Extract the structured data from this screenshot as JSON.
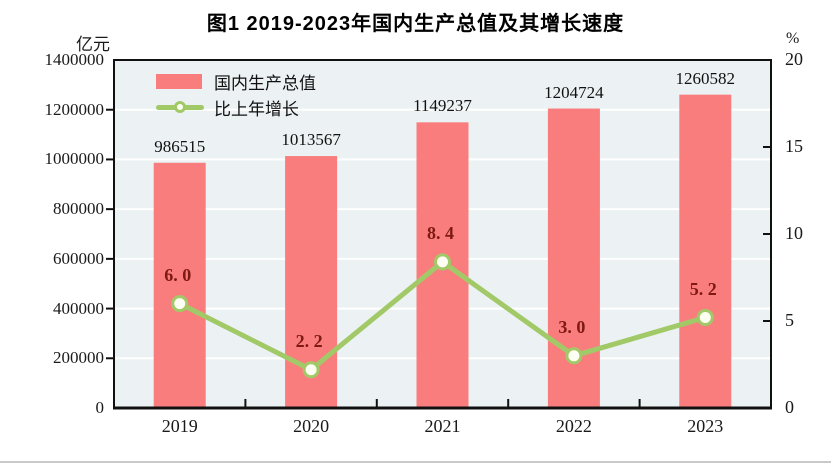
{
  "title": "图1  2019-2023年国内生产总值及其增长速度",
  "colors": {
    "bar": "#F97D7D",
    "line": "#A2C968",
    "marker_fill": "#FDFFF2",
    "plot_bg": "#ECF2F4",
    "gridline": "#FFFFFF",
    "axis": "#111111",
    "bar_label": "#111111",
    "growth_label": "#7E1A0F",
    "tick_label": "#1A1A1A"
  },
  "chart_data": {
    "type": "bar+line",
    "title": "图1  2019-2023年国内生产总值及其增长速度",
    "categories": [
      "2019",
      "2020",
      "2021",
      "2022",
      "2023"
    ],
    "series": [
      {
        "name": "国内生产总值",
        "type": "bar",
        "axis": "left",
        "unit": "亿元",
        "values": [
          986515,
          1013567,
          1149237,
          1204724,
          1260582
        ],
        "labels": [
          "986515",
          "1013567",
          "1149237",
          "1204724",
          "1260582"
        ]
      },
      {
        "name": "比上年增长",
        "type": "line",
        "axis": "right",
        "unit": "%",
        "values": [
          6.0,
          2.2,
          8.4,
          3.0,
          5.2
        ],
        "labels": [
          "6. 0",
          "2. 2",
          "8. 4",
          "3. 0",
          "5. 2"
        ]
      }
    ],
    "left_axis": {
      "unit": "亿元",
      "min": 0,
      "max": 1400000,
      "tick_interval": 200000,
      "tick_labels": [
        "0",
        "200000",
        "400000",
        "600000",
        "800000",
        "1000000",
        "1200000",
        "1400000"
      ]
    },
    "right_axis": {
      "unit": "%",
      "min": 0,
      "max": 20,
      "tick_interval": 5,
      "tick_labels": [
        "0",
        "5",
        "10",
        "15",
        "20"
      ]
    },
    "grid": true,
    "legend_position": "top-left-inside"
  }
}
